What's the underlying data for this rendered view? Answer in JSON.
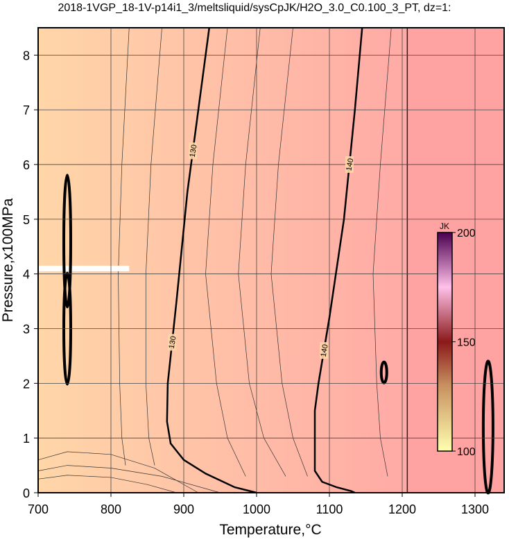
{
  "chart_data": {
    "type": "contour",
    "title": "2018-1VGP_18-1V-p14i1_3/meltsliquid/sysCpJK/H2O_3.0_C0.100_3_PT, dz=1:",
    "x_label": "Temperature,°C",
    "y_label": "Pressure,x100MPa",
    "xlim": [
      700,
      1340
    ],
    "ylim": [
      0,
      8.5
    ],
    "xticks": [
      700,
      800,
      900,
      1000,
      1100,
      1200,
      1300
    ],
    "yticks": [
      0,
      1,
      2,
      3,
      4,
      5,
      6,
      7,
      8
    ],
    "grid": true,
    "colors": {
      "left": "#ffd6a8",
      "right": "#ffaaa6",
      "far": "#ffa2a2"
    },
    "contours": [
      {
        "label": "130",
        "x": [
          1000,
          970,
          930,
          900,
          882,
          877,
          878,
          890,
          905,
          920,
          935
        ],
        "y": [
          0,
          0.1,
          0.35,
          0.6,
          0.9,
          1.3,
          2,
          3.5,
          5.5,
          7,
          8.5
        ]
      },
      {
        "label": "140",
        "x": [
          1135,
          1130,
          1110,
          1090,
          1080,
          1080,
          1085,
          1100,
          1120,
          1135,
          1145
        ],
        "y": [
          0,
          0.03,
          0.1,
          0.2,
          0.4,
          1.5,
          2,
          3.2,
          5,
          7,
          8.5
        ]
      }
    ],
    "minor_contours": [
      {
        "x": [
          820,
          815,
          812,
          810,
          815,
          825
        ],
        "y": [
          0.5,
          1,
          2,
          4,
          6,
          8.5
        ]
      },
      {
        "x": [
          860,
          852,
          848,
          848,
          855,
          870
        ],
        "y": [
          0.5,
          1,
          2,
          4,
          6,
          8.5
        ]
      },
      {
        "x": [
          985,
          960,
          945,
          930,
          940,
          960
        ],
        "y": [
          0.3,
          1,
          2,
          4,
          6,
          8.5
        ]
      },
      {
        "x": [
          1040,
          1010,
          990,
          975,
          985,
          1005
        ],
        "y": [
          0.3,
          1,
          2,
          4,
          6,
          8.5
        ]
      },
      {
        "x": [
          1070,
          1050,
          1035,
          1020,
          1030,
          1050
        ],
        "y": [
          0.3,
          1,
          2,
          4,
          6,
          8.5
        ]
      },
      {
        "x": [
          1180,
          1170,
          1165,
          1160,
          1170,
          1185
        ],
        "y": [
          0.3,
          1,
          2,
          4,
          6,
          8.5
        ]
      },
      {
        "x": [
          700,
          740,
          800,
          870,
          950
        ],
        "y": [
          0.4,
          0.5,
          0.45,
          0.3,
          0
        ]
      },
      {
        "x": [
          700,
          740,
          800,
          860,
          920
        ],
        "y": [
          0.6,
          0.75,
          0.7,
          0.45,
          0
        ]
      },
      {
        "x": [
          700,
          740,
          800,
          850,
          890
        ],
        "y": [
          0.25,
          0.32,
          0.28,
          0.15,
          0
        ]
      }
    ],
    "boundary_x": 1207,
    "colorbar": {
      "label": "JK",
      "lim": [
        100,
        200
      ],
      "ticks": [
        100,
        150,
        200
      ]
    }
  }
}
